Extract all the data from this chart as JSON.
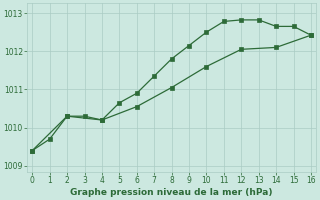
{
  "xlabel": "Graphe pression niveau de la mer (hPa)",
  "bg_color": "#cce8e0",
  "grid_color": "#aaccc4",
  "line_color": "#2d6b38",
  "line1_x": [
    0,
    1,
    2,
    3,
    4,
    5,
    6,
    7,
    8,
    9,
    10,
    11,
    12,
    13,
    14,
    15,
    16
  ],
  "line1_y": [
    1009.4,
    1009.7,
    1010.3,
    1010.3,
    1010.2,
    1010.65,
    1010.9,
    1011.35,
    1011.8,
    1012.15,
    1012.5,
    1012.78,
    1012.82,
    1012.82,
    1012.65,
    1012.65,
    1012.42
  ],
  "line2_x": [
    0,
    2,
    4,
    6,
    8,
    10,
    12,
    14,
    16
  ],
  "line2_y": [
    1009.4,
    1010.3,
    1010.2,
    1010.55,
    1011.05,
    1011.6,
    1012.05,
    1012.1,
    1012.42
  ],
  "xlim": [
    -0.3,
    16.3
  ],
  "ylim": [
    1008.85,
    1013.25
  ],
  "yticks": [
    1009,
    1010,
    1011,
    1012,
    1013
  ],
  "xticks": [
    0,
    1,
    2,
    3,
    4,
    5,
    6,
    7,
    8,
    9,
    10,
    11,
    12,
    13,
    14,
    15,
    16
  ],
  "xlabel_fontsize": 6.5,
  "tick_fontsize": 5.5
}
